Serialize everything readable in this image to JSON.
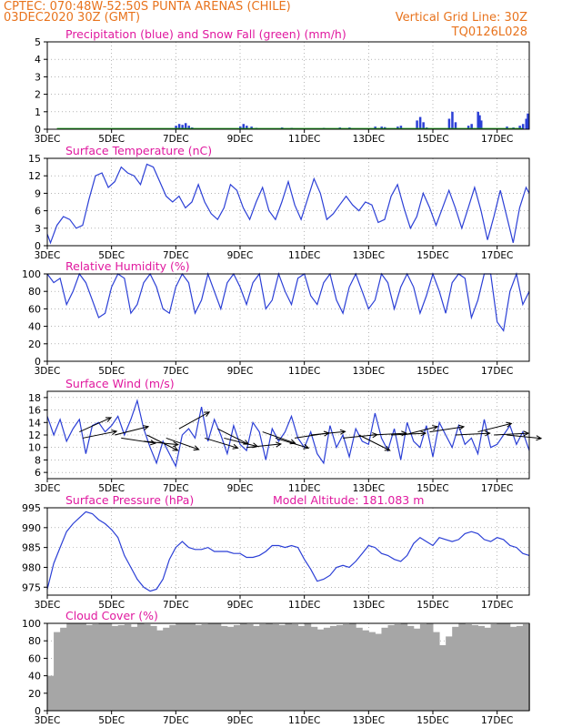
{
  "header": {
    "line1_left": "CPTEC:   070:48W-52:50S  PUNTA ARENAS (CHILE)",
    "line2_left": "03DEC2020 30Z (GMT)",
    "line2_right": "Vertical Grid Line: 30Z",
    "line3_right": "TQ0126L028",
    "color": "#e8731d"
  },
  "colors": {
    "title": "#e0199f",
    "line": "#2b3fd6",
    "snow": "#1ea01e",
    "cloud": "#a6a6a6",
    "grid": "#888888"
  },
  "chart_data": [
    {
      "type": "bar",
      "title": "Precipitation (blue) and Snow Fall (green) (mm/h)",
      "x_tick_labels": [
        "3DEC",
        "5DEC",
        "7DEC",
        "9DEC",
        "11DEC",
        "13DEC",
        "15DEC",
        "17DEC"
      ],
      "ylim": [
        0,
        5
      ],
      "yticks": [
        0,
        1,
        2,
        3,
        4,
        5
      ],
      "series": [
        {
          "name": "Precipitation",
          "color": "#2b3fd6",
          "points": [
            [
              0.9,
              0.05
            ],
            [
              1.2,
              0.03
            ],
            [
              1.6,
              0.05
            ],
            [
              2.0,
              0.05
            ],
            [
              2.4,
              0.04
            ],
            [
              4.0,
              0.2
            ],
            [
              4.1,
              0.3
            ],
            [
              4.2,
              0.25
            ],
            [
              4.3,
              0.35
            ],
            [
              4.4,
              0.2
            ],
            [
              4.5,
              0.1
            ],
            [
              6.0,
              0.15
            ],
            [
              6.1,
              0.3
            ],
            [
              6.2,
              0.2
            ],
            [
              6.35,
              0.15
            ],
            [
              6.5,
              0.08
            ],
            [
              7.3,
              0.1
            ],
            [
              7.6,
              0.08
            ],
            [
              8.3,
              0.05
            ],
            [
              8.6,
              0.08
            ],
            [
              9.1,
              0.1
            ],
            [
              9.4,
              0.1
            ],
            [
              10.2,
              0.15
            ],
            [
              10.4,
              0.15
            ],
            [
              10.5,
              0.12
            ],
            [
              10.9,
              0.15
            ],
            [
              11.0,
              0.2
            ],
            [
              11.5,
              0.5
            ],
            [
              11.6,
              0.7
            ],
            [
              11.7,
              0.4
            ],
            [
              11.8,
              0.1
            ],
            [
              12.5,
              0.6
            ],
            [
              12.6,
              1.0
            ],
            [
              12.7,
              0.4
            ],
            [
              13.1,
              0.2
            ],
            [
              13.2,
              0.3
            ],
            [
              13.4,
              1.0
            ],
            [
              13.45,
              0.8
            ],
            [
              13.5,
              0.5
            ],
            [
              14.3,
              0.15
            ],
            [
              14.5,
              0.1
            ],
            [
              14.7,
              0.2
            ],
            [
              14.8,
              0.3
            ],
            [
              14.9,
              0.6
            ],
            [
              14.95,
              0.9
            ]
          ]
        },
        {
          "name": "Snow Fall",
          "color": "#1ea01e",
          "baseline_value": 0.03
        }
      ]
    },
    {
      "type": "line",
      "title": "Surface Temperature (nC)",
      "ylim": [
        0,
        15
      ],
      "yticks": [
        0,
        3,
        6,
        9,
        12,
        15
      ],
      "x": [
        0.0,
        0.1,
        0.3,
        0.5,
        0.7,
        0.9,
        1.1,
        1.3,
        1.5,
        1.7,
        1.9,
        2.1,
        2.3,
        2.5,
        2.7,
        2.9,
        3.1,
        3.3,
        3.5,
        3.7,
        3.9,
        4.1,
        4.3,
        4.5,
        4.7,
        4.9,
        5.1,
        5.3,
        5.5,
        5.7,
        5.9,
        6.1,
        6.3,
        6.5,
        6.7,
        6.9,
        7.1,
        7.3,
        7.5,
        7.7,
        7.9,
        8.1,
        8.3,
        8.5,
        8.7,
        8.9,
        9.1,
        9.3,
        9.5,
        9.7,
        9.9,
        10.1,
        10.3,
        10.5,
        10.7,
        10.9,
        11.1,
        11.3,
        11.5,
        11.7,
        11.9,
        12.1,
        12.3,
        12.5,
        12.7,
        12.9,
        13.1,
        13.3,
        13.5,
        13.7,
        13.9,
        14.1,
        14.3,
        14.5,
        14.7,
        14.9,
        15.0
      ],
      "y": [
        2.0,
        0.5,
        3.5,
        5.0,
        4.5,
        3.0,
        3.5,
        8.0,
        12.0,
        12.5,
        10.0,
        11.0,
        13.5,
        12.5,
        12.0,
        10.5,
        14.0,
        13.5,
        11.0,
        8.5,
        7.5,
        8.5,
        6.5,
        7.5,
        10.5,
        7.5,
        5.5,
        4.5,
        6.5,
        10.5,
        9.5,
        6.5,
        4.5,
        7.5,
        10.0,
        6.0,
        4.5,
        7.5,
        11.0,
        7.0,
        4.5,
        8.0,
        11.5,
        9.0,
        4.5,
        5.5,
        7.0,
        8.5,
        7.0,
        6.0,
        7.5,
        7.0,
        4.0,
        4.5,
        8.5,
        10.5,
        6.5,
        3.0,
        5.0,
        9.0,
        6.5,
        3.5,
        6.5,
        9.5,
        6.5,
        3.0,
        6.5,
        10.0,
        6.0,
        1.0,
        5.0,
        9.5,
        5.0,
        0.5,
        6.5,
        10.0,
        9.0
      ]
    },
    {
      "type": "line",
      "title": "Relative Humidity (%)",
      "ylim": [
        0,
        100
      ],
      "yticks": [
        0,
        20,
        40,
        60,
        80,
        100
      ],
      "x": [
        0.0,
        0.2,
        0.4,
        0.6,
        0.8,
        1.0,
        1.2,
        1.4,
        1.6,
        1.8,
        2.0,
        2.2,
        2.4,
        2.6,
        2.8,
        3.0,
        3.2,
        3.4,
        3.6,
        3.8,
        4.0,
        4.2,
        4.4,
        4.6,
        4.8,
        5.0,
        5.2,
        5.4,
        5.6,
        5.8,
        6.0,
        6.2,
        6.4,
        6.6,
        6.8,
        7.0,
        7.2,
        7.4,
        7.6,
        7.8,
        8.0,
        8.2,
        8.4,
        8.6,
        8.8,
        9.0,
        9.2,
        9.4,
        9.6,
        9.8,
        10.0,
        10.2,
        10.4,
        10.6,
        10.8,
        11.0,
        11.2,
        11.4,
        11.6,
        11.8,
        12.0,
        12.2,
        12.4,
        12.6,
        12.8,
        13.0,
        13.2,
        13.4,
        13.6,
        13.8,
        14.0,
        14.2,
        14.4,
        14.6,
        14.8,
        15.0
      ],
      "y": [
        100,
        90,
        95,
        65,
        80,
        100,
        90,
        70,
        50,
        55,
        85,
        100,
        95,
        55,
        65,
        90,
        100,
        85,
        60,
        55,
        85,
        100,
        90,
        55,
        70,
        100,
        80,
        60,
        90,
        100,
        85,
        65,
        90,
        100,
        60,
        70,
        100,
        80,
        65,
        95,
        100,
        75,
        65,
        90,
        100,
        70,
        55,
        85,
        100,
        80,
        60,
        70,
        100,
        90,
        60,
        85,
        100,
        85,
        55,
        75,
        100,
        80,
        55,
        90,
        100,
        95,
        50,
        70,
        100,
        100,
        45,
        35,
        80,
        100,
        65,
        80
      ]
    },
    {
      "type": "line",
      "title": "Surface Wind (m/s)",
      "ylim": [
        5,
        19
      ],
      "yticks": [
        6,
        8,
        10,
        12,
        14,
        16,
        18
      ],
      "x": [
        0.0,
        0.2,
        0.4,
        0.6,
        0.8,
        1.0,
        1.2,
        1.4,
        1.6,
        1.8,
        2.0,
        2.2,
        2.4,
        2.6,
        2.8,
        3.0,
        3.2,
        3.4,
        3.6,
        3.8,
        4.0,
        4.2,
        4.4,
        4.6,
        4.8,
        5.0,
        5.2,
        5.4,
        5.6,
        5.8,
        6.0,
        6.2,
        6.4,
        6.6,
        6.8,
        7.0,
        7.2,
        7.4,
        7.6,
        7.8,
        8.0,
        8.2,
        8.4,
        8.6,
        8.8,
        9.0,
        9.2,
        9.4,
        9.6,
        9.8,
        10.0,
        10.2,
        10.4,
        10.6,
        10.8,
        11.0,
        11.2,
        11.4,
        11.6,
        11.8,
        12.0,
        12.2,
        12.4,
        12.6,
        12.8,
        13.0,
        13.2,
        13.4,
        13.6,
        13.8,
        14.0,
        14.2,
        14.4,
        14.6,
        14.8,
        15.0
      ],
      "y": [
        15.0,
        12.0,
        14.5,
        11.0,
        13.0,
        14.5,
        9.0,
        13.5,
        14.0,
        12.5,
        13.5,
        15.0,
        12.0,
        14.5,
        17.5,
        13.0,
        10.0,
        7.5,
        11.0,
        9.0,
        7.0,
        12.0,
        13.0,
        11.5,
        16.5,
        11.0,
        14.5,
        12.0,
        9.0,
        13.5,
        10.5,
        9.5,
        14.0,
        12.5,
        8.0,
        13.0,
        11.0,
        12.5,
        15.0,
        11.5,
        10.0,
        12.5,
        9.0,
        7.5,
        13.5,
        10.0,
        12.0,
        8.5,
        13.0,
        11.0,
        10.5,
        15.5,
        11.5,
        9.5,
        13.0,
        8.0,
        14.0,
        11.0,
        10.0,
        13.5,
        8.5,
        14.0,
        12.0,
        10.0,
        13.5,
        10.5,
        11.5,
        9.0,
        14.5,
        10.0,
        10.5,
        12.0,
        13.5,
        10.5,
        12.5,
        9.5
      ],
      "arrows": [
        {
          "x": 1.0,
          "y": 12.5,
          "dir": [
            1.0,
            0.45
          ]
        },
        {
          "x": 1.1,
          "y": 11.5,
          "dir": [
            1.0,
            0.2
          ]
        },
        {
          "x": 2.1,
          "y": 12.0,
          "dir": [
            1.0,
            0.25
          ]
        },
        {
          "x": 2.3,
          "y": 11.5,
          "dir": [
            1.0,
            -0.15
          ]
        },
        {
          "x": 3.0,
          "y": 11.0,
          "dir": [
            1.0,
            -0.1
          ]
        },
        {
          "x": 3.1,
          "y": 12.0,
          "dir": [
            1.0,
            -0.5
          ]
        },
        {
          "x": 3.7,
          "y": 11.5,
          "dir": [
            1.0,
            -0.35
          ]
        },
        {
          "x": 4.1,
          "y": 13.0,
          "dir": [
            1.0,
            0.55
          ]
        },
        {
          "x": 4.9,
          "y": 11.5,
          "dir": [
            1.0,
            -0.3
          ]
        },
        {
          "x": 5.3,
          "y": 13.0,
          "dir": [
            1.0,
            -0.5
          ]
        },
        {
          "x": 5.5,
          "y": 11.5,
          "dir": [
            1.0,
            -0.25
          ]
        },
        {
          "x": 6.2,
          "y": 10.0,
          "dir": [
            1.0,
            0.1
          ]
        },
        {
          "x": 6.7,
          "y": 12.5,
          "dir": [
            1.0,
            -0.35
          ]
        },
        {
          "x": 7.1,
          "y": 11.5,
          "dir": [
            1.0,
            -0.3
          ]
        },
        {
          "x": 7.7,
          "y": 11.5,
          "dir": [
            1.0,
            0.15
          ]
        },
        {
          "x": 8.2,
          "y": 12.0,
          "dir": [
            1.0,
            0.1
          ]
        },
        {
          "x": 9.2,
          "y": 11.5,
          "dir": [
            1.0,
            0.1
          ]
        },
        {
          "x": 9.7,
          "y": 12.0,
          "dir": [
            1.0,
            -0.5
          ]
        },
        {
          "x": 10.1,
          "y": 12.0,
          "dir": [
            1.0,
            0.05
          ]
        },
        {
          "x": 10.7,
          "y": 12.0,
          "dir": [
            1.0,
            0.05
          ]
        },
        {
          "x": 11.1,
          "y": 12.0,
          "dir": [
            1.0,
            0.25
          ]
        },
        {
          "x": 11.9,
          "y": 12.5,
          "dir": [
            1.0,
            0.15
          ]
        },
        {
          "x": 12.7,
          "y": 12.0,
          "dir": [
            1.0,
            0.05
          ]
        },
        {
          "x": 13.4,
          "y": 12.5,
          "dir": [
            1.0,
            0.25
          ]
        },
        {
          "x": 13.9,
          "y": 12.0,
          "dir": [
            1.0,
            0.05
          ]
        },
        {
          "x": 14.3,
          "y": 12.0,
          "dir": [
            1.0,
            -0.1
          ]
        }
      ]
    },
    {
      "type": "line",
      "title": "Surface Pressure (hPa)",
      "annotation": "Model Altitude: 181.083 m",
      "ylim": [
        973,
        995
      ],
      "yticks": [
        975,
        980,
        985,
        990,
        995
      ],
      "x": [
        0.0,
        0.2,
        0.4,
        0.6,
        0.8,
        1.0,
        1.2,
        1.4,
        1.6,
        1.8,
        2.0,
        2.2,
        2.4,
        2.6,
        2.8,
        3.0,
        3.2,
        3.4,
        3.6,
        3.8,
        4.0,
        4.2,
        4.4,
        4.6,
        4.8,
        5.0,
        5.2,
        5.4,
        5.6,
        5.8,
        6.0,
        6.2,
        6.4,
        6.6,
        6.8,
        7.0,
        7.2,
        7.4,
        7.6,
        7.8,
        8.0,
        8.2,
        8.4,
        8.6,
        8.8,
        9.0,
        9.2,
        9.4,
        9.6,
        9.8,
        10.0,
        10.2,
        10.4,
        10.6,
        10.8,
        11.0,
        11.2,
        11.4,
        11.6,
        11.8,
        12.0,
        12.2,
        12.4,
        12.6,
        12.8,
        13.0,
        13.2,
        13.4,
        13.6,
        13.8,
        14.0,
        14.2,
        14.4,
        14.6,
        14.8,
        15.0
      ],
      "y": [
        974.5,
        981.0,
        985.0,
        989.0,
        991.0,
        992.5,
        994.0,
        993.5,
        992.0,
        991.0,
        989.5,
        987.5,
        983.0,
        980.0,
        977.0,
        975.0,
        974.0,
        974.5,
        977.0,
        982.0,
        985.0,
        986.5,
        985.0,
        984.5,
        984.5,
        985.0,
        984.0,
        984.0,
        984.0,
        983.5,
        983.5,
        982.5,
        982.5,
        983.0,
        984.0,
        985.5,
        985.5,
        985.0,
        985.5,
        985.0,
        982.0,
        979.5,
        976.5,
        977.0,
        978.0,
        980.0,
        980.5,
        980.0,
        981.5,
        983.5,
        985.5,
        985.0,
        983.5,
        983.0,
        982.0,
        981.5,
        983.0,
        986.0,
        987.5,
        986.5,
        985.5,
        987.5,
        987.0,
        986.5,
        987.0,
        988.5,
        989.0,
        988.5,
        987.0,
        986.5,
        987.5,
        987.0,
        985.5,
        985.0,
        983.5,
        983.0
      ]
    },
    {
      "type": "area",
      "title": "Cloud Cover (%)",
      "ylim": [
        0,
        100
      ],
      "yticks": [
        0,
        20,
        40,
        60,
        80,
        100
      ],
      "x": [
        0.0,
        0.2,
        0.4,
        0.6,
        0.8,
        1.0,
        1.2,
        1.4,
        1.6,
        1.8,
        2.0,
        2.2,
        2.4,
        2.6,
        2.8,
        3.0,
        3.2,
        3.4,
        3.6,
        3.8,
        4.0,
        4.2,
        4.4,
        4.6,
        4.8,
        5.0,
        5.2,
        5.4,
        5.6,
        5.8,
        6.0,
        6.2,
        6.4,
        6.6,
        6.8,
        7.0,
        7.2,
        7.4,
        7.6,
        7.8,
        8.0,
        8.2,
        8.4,
        8.6,
        8.8,
        9.0,
        9.2,
        9.4,
        9.6,
        9.8,
        10.0,
        10.2,
        10.4,
        10.6,
        10.8,
        11.0,
        11.2,
        11.4,
        11.6,
        11.8,
        12.0,
        12.2,
        12.4,
        12.6,
        12.8,
        13.0,
        13.2,
        13.4,
        13.6,
        13.8,
        14.0,
        14.2,
        14.4,
        14.6,
        14.8,
        15.0
      ],
      "y": [
        40,
        90,
        95,
        100,
        100,
        100,
        98,
        99,
        100,
        100,
        97,
        98,
        99,
        96,
        100,
        99,
        97,
        92,
        95,
        98,
        100,
        100,
        100,
        98,
        99,
        100,
        100,
        97,
        96,
        98,
        100,
        99,
        97,
        99,
        100,
        99,
        98,
        100,
        99,
        97,
        100,
        96,
        93,
        95,
        97,
        98,
        99,
        100,
        95,
        92,
        90,
        88,
        95,
        98,
        99,
        100,
        97,
        94,
        99,
        100,
        90,
        75,
        85,
        96,
        100,
        99,
        98,
        97,
        95,
        99,
        100,
        100,
        96,
        97,
        99,
        100
      ]
    }
  ]
}
